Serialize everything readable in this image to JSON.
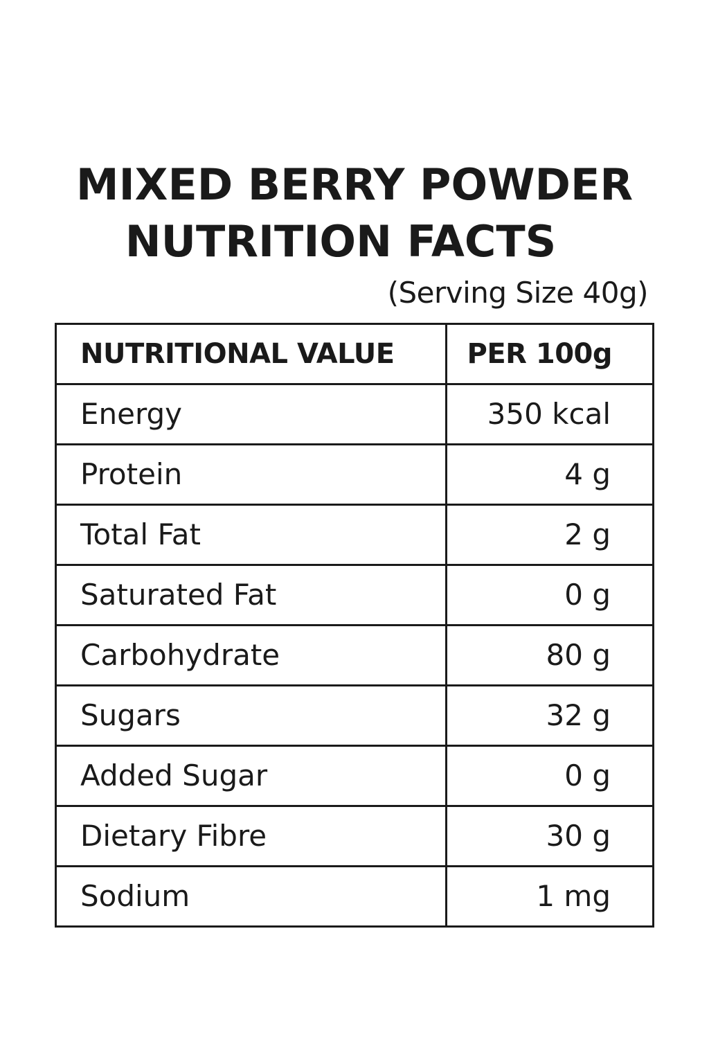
{
  "title_line1": "MIXED BERRY POWDER",
  "title_line2": "NUTRITION FACTS",
  "serving": "(Serving Size 40g)",
  "table": {
    "headers": [
      "NUTRITIONAL VALUE",
      "PER 100g"
    ],
    "rows": [
      {
        "name": "Energy",
        "value": "350 kcal"
      },
      {
        "name": "Protein",
        "value": "4 g"
      },
      {
        "name": "Total Fat",
        "value": "2 g"
      },
      {
        "name": "Saturated Fat",
        "value": "0 g"
      },
      {
        "name": "Carbohydrate",
        "value": "80 g"
      },
      {
        "name": "Sugars",
        "value": "32 g"
      },
      {
        "name": "Added Sugar",
        "value": "0 g"
      },
      {
        "name": "Dietary Fibre",
        "value": "30 g"
      },
      {
        "name": "Sodium",
        "value": "1 mg"
      }
    ]
  }
}
